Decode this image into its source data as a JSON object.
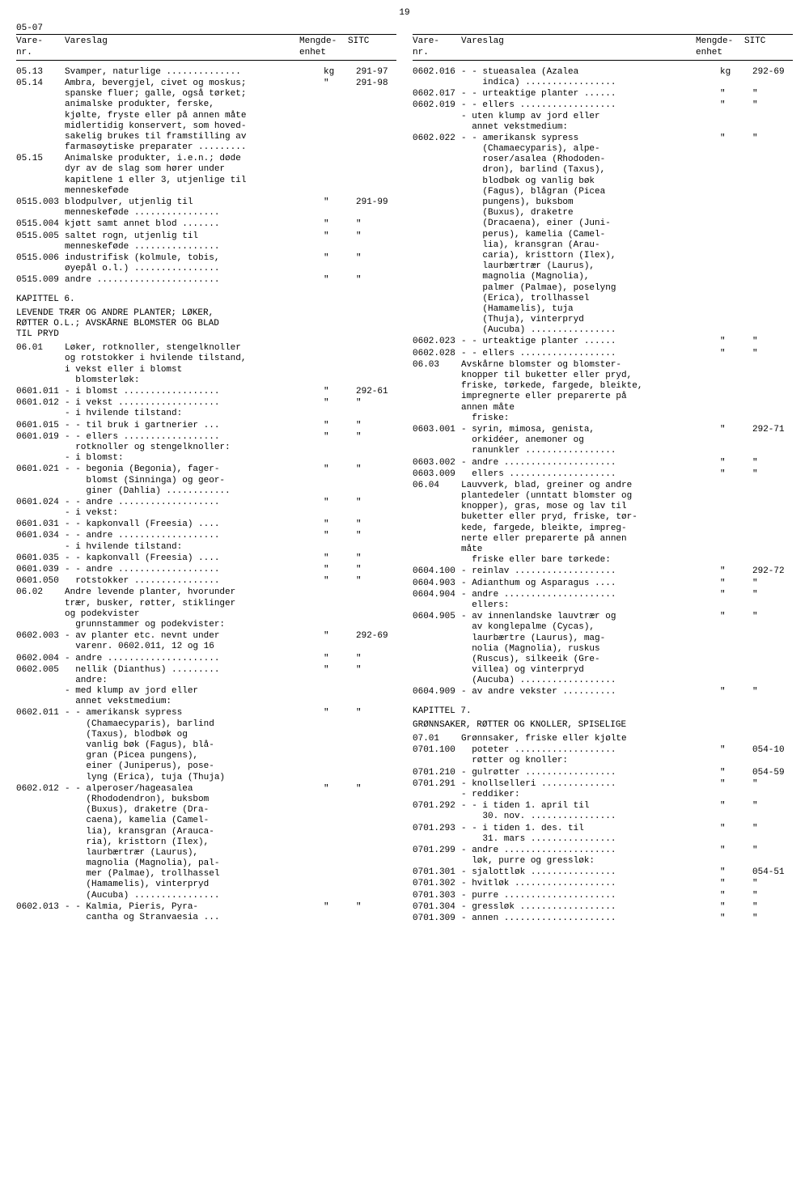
{
  "page_number": "19",
  "top_code": "05-07",
  "headers": {
    "vare_nr": "Vare-\nnr.",
    "vareslag": "Vareslag",
    "mengde_enhet": "Mengde-\nenhet",
    "sitc": "SITC"
  },
  "left": [
    {
      "nr": "05.13",
      "text": "Svamper, naturlige ..............",
      "unit": "kg",
      "sitc": "291-97"
    },
    {
      "nr": "05.14",
      "text": "Ambra, bevergjel, civet og moskus;\nspanske fluer; galle, også tørket;\nanimalske produkter, ferske,\nkjølte, fryste eller på annen måte\nmidlertidig konservert, som hoved-\nsakelig brukes til framstilling av\nfarmasøytiske preparater .........",
      "unit": "\"",
      "sitc": "291-98"
    },
    {
      "nr": "05.15",
      "text": "Animalske produkter, i.e.n.; døde\ndyr av de slag som hører under\nkapitlene 1 eller 3, utjenlige til\nmenneskeføde",
      "unit": "",
      "sitc": ""
    },
    {
      "nr": "0515.003",
      "text": "blodpulver, utjenlig til\nmenneskeføde ................",
      "unit": "\"",
      "sitc": "291-99"
    },
    {
      "nr": "0515.004",
      "text": "kjøtt samt annet blod .......",
      "unit": "\"",
      "sitc": "\""
    },
    {
      "nr": "0515.005",
      "text": "saltet rogn, utjenlig til\nmenneskeføde ................",
      "unit": "\"",
      "sitc": "\""
    },
    {
      "nr": "0515.006",
      "text": "industrifisk (kolmule, tobis,\nøyepål o.l.) ................",
      "unit": "\"",
      "sitc": "\""
    },
    {
      "nr": "0515.009",
      "text": "andre .......................",
      "unit": "\"",
      "sitc": "\""
    },
    {
      "nr": "",
      "text": "",
      "chapter": "KAPITTEL 6."
    },
    {
      "nr": "",
      "text": "",
      "title": "LEVENDE TRÆR OG ANDRE PLANTER; LØKER,\nRØTTER O.L.; AVSKÅRNE BLOMSTER OG BLAD\nTIL PRYD"
    },
    {
      "nr": "06.01",
      "text": "Løker, rotknoller, stengelknoller\nog rotstokker i hvilende tilstand,\ni vekst eller i blomst\n  blomsterløk:",
      "unit": "",
      "sitc": ""
    },
    {
      "nr": "0601.011",
      "text": "- i blomst ..................",
      "unit": "\"",
      "sitc": "292-61"
    },
    {
      "nr": "0601.012",
      "text": "- i vekst ...................\n- i hvilende tilstand:",
      "unit": "\"",
      "sitc": "\""
    },
    {
      "nr": "0601.015",
      "text": "- - til bruk i gartnerier ...",
      "unit": "\"",
      "sitc": "\""
    },
    {
      "nr": "0601.019",
      "text": "- - ellers ..................\n  rotknoller og stengelknoller:\n- i blomst:",
      "unit": "\"",
      "sitc": "\""
    },
    {
      "nr": "0601.021",
      "text": "- - begonia (Begonia), fager-\n    blomst (Sinninga) og geor-\n    giner (Dahlia) ............",
      "unit": "\"",
      "sitc": "\""
    },
    {
      "nr": "0601.024",
      "text": "- - andre ...................\n- i vekst:",
      "unit": "\"",
      "sitc": "\""
    },
    {
      "nr": "0601.031",
      "text": "- - kapkonvall (Freesia) ....",
      "unit": "\"",
      "sitc": "\""
    },
    {
      "nr": "0601.034",
      "text": "- - andre ...................\n- i hvilende tilstand:",
      "unit": "\"",
      "sitc": "\""
    },
    {
      "nr": "0601.035",
      "text": "- - kapkonvall (Freesia) ....",
      "unit": "\"",
      "sitc": "\""
    },
    {
      "nr": "0601.039",
      "text": "- - andre ...................",
      "unit": "\"",
      "sitc": "\""
    },
    {
      "nr": "0601.050",
      "text": "  rotstokker ................",
      "unit": "\"",
      "sitc": "\""
    },
    {
      "nr": "06.02",
      "text": "Andre levende planter, hvorunder\ntrær, busker, røtter, stiklinger\nog podekvister\n  grunnstammer og podekvister:",
      "unit": "",
      "sitc": ""
    },
    {
      "nr": "0602.003",
      "text": "- av planter etc. nevnt under\n  varenr. 0602.011, 12 og 16",
      "unit": "\"",
      "sitc": "292-69"
    },
    {
      "nr": "0602.004",
      "text": "- andre .....................",
      "unit": "\"",
      "sitc": "\""
    },
    {
      "nr": "0602.005",
      "text": "  nellik (Dianthus) .........\n  andre:\n- med klump av jord eller\n  annet vekstmedium:",
      "unit": "\"",
      "sitc": "\""
    },
    {
      "nr": "0602.011",
      "text": "- - amerikansk sypress\n    (Chamaecyparis), barlind\n    (Taxus), blodbøk og\n    vanlig bøk (Fagus), blå-\n    gran (Picea pungens),\n    einer (Juniperus), pose-\n    lyng (Erica), tuja (Thuja)",
      "unit": "\"",
      "sitc": "\""
    },
    {
      "nr": "0602.012",
      "text": "- - alperoser/hageasalea\n    (Rhododendron), buksbom\n    (Buxus), draketre (Dra-\n    caena), kamelia (Camel-\n    lia), kransgran (Arauca-\n    ria), kristtorn (Ilex),\n    laurbærtrær (Laurus),\n    magnolia (Magnolia), pal-\n    mer (Palmae), trollhassel\n    (Hamamelis), vinterpryd\n    (Aucuba) ................",
      "unit": "\"",
      "sitc": "\""
    },
    {
      "nr": "0602.013",
      "text": "- - Kalmia, Pieris, Pyra-\n    cantha og Stranvaesia ...",
      "unit": "\"",
      "sitc": "\""
    }
  ],
  "right": [
    {
      "nr": "0602.016",
      "text": "- - stueasalea (Azalea\n    indica) .................",
      "unit": "kg",
      "sitc": "292-69"
    },
    {
      "nr": "0602.017",
      "text": "- - urteaktige planter ......",
      "unit": "\"",
      "sitc": "\""
    },
    {
      "nr": "0602.019",
      "text": "- - ellers ..................\n- uten klump av jord eller\n  annet vekstmedium:",
      "unit": "\"",
      "sitc": "\""
    },
    {
      "nr": "0602.022",
      "text": "- - amerikansk sypress\n    (Chamaecyparis), alpe-\n    roser/asalea (Rhododen-\n    dron), barlind (Taxus),\n    blodbøk og vanlig bøk\n    (Fagus), blågran (Picea\n    pungens), buksbom\n    (Buxus), draketre\n    (Dracaena), einer (Juni-\n    perus), kamelia (Camel-\n    lia), kransgran (Arau-\n    caria), kristtorn (Ilex),\n    laurbærtrær (Laurus),\n    magnolia (Magnolia),\n    palmer (Palmae), poselyng\n    (Erica), trollhassel\n    (Hamamelis), tuja\n    (Thuja), vinterpryd\n    (Aucuba) ................",
      "unit": "\"",
      "sitc": "\""
    },
    {
      "nr": "0602.023",
      "text": "- - urteaktige planter ......",
      "unit": "\"",
      "sitc": "\""
    },
    {
      "nr": "0602.028",
      "text": "- - ellers ..................",
      "unit": "\"",
      "sitc": "\""
    },
    {
      "nr": "06.03",
      "text": "Avskårne blomster og blomster-\nknopper til buketter eller pryd,\nfriske, tørkede, fargede, bleikte,\nimpregnerte eller preparerte på\nannen måte\n  friske:",
      "unit": "",
      "sitc": ""
    },
    {
      "nr": "0603.001",
      "text": "- syrin, mimosa, genista,\n  orkidéer, anemoner og\n  ranunkler .................",
      "unit": "\"",
      "sitc": "292-71"
    },
    {
      "nr": "0603.002",
      "text": "- andre .....................",
      "unit": "\"",
      "sitc": "\""
    },
    {
      "nr": "0603.009",
      "text": "  ellers ....................",
      "unit": "\"",
      "sitc": "\""
    },
    {
      "nr": "06.04",
      "text": "Lauvverk, blad, greiner og andre\nplantedeler (unntatt blomster og\nknopper), gras, mose og lav til\nbuketter eller pryd, friske, tør-\nkede, fargede, bleikte, impreg-\nnerte eller preparerte på annen\nmåte\n  friske eller bare tørkede:",
      "unit": "",
      "sitc": ""
    },
    {
      "nr": "0604.100",
      "text": "- reinlav ...................",
      "unit": "\"",
      "sitc": "292-72"
    },
    {
      "nr": "0604.903",
      "text": "- Adianthum og Asparagus ....",
      "unit": "\"",
      "sitc": "\""
    },
    {
      "nr": "0604.904",
      "text": "- andre .....................\n  ellers:",
      "unit": "\"",
      "sitc": "\""
    },
    {
      "nr": "0604.905",
      "text": "- av innenlandske lauvtrær og\n  av konglepalme (Cycas),\n  laurbærtre (Laurus), mag-\n  nolia (Magnolia), ruskus\n  (Ruscus), silkeeik (Gre-\n  villea) og vinterpryd\n  (Aucuba) ..................",
      "unit": "\"",
      "sitc": "\""
    },
    {
      "nr": "0604.909",
      "text": "- av andre vekster ..........",
      "unit": "\"",
      "sitc": "\""
    },
    {
      "nr": "",
      "text": "",
      "chapter": "KAPITTEL 7."
    },
    {
      "nr": "",
      "text": "",
      "title": "GRØNNSAKER, RØTTER OG KNOLLER, SPISELIGE"
    },
    {
      "nr": "07.01",
      "text": "Grønnsaker, friske eller kjølte",
      "unit": "",
      "sitc": ""
    },
    {
      "nr": "0701.100",
      "text": "  poteter ...................\n  røtter og knoller:",
      "unit": "\"",
      "sitc": "054-10"
    },
    {
      "nr": "0701.210",
      "text": "- gulrøtter .................",
      "unit": "\"",
      "sitc": "054-59"
    },
    {
      "nr": "0701.291",
      "text": "- knollselleri ..............\n- reddiker:",
      "unit": "\"",
      "sitc": "\""
    },
    {
      "nr": "0701.292",
      "text": "- - i tiden 1. april til\n    30. nov. ................",
      "unit": "\"",
      "sitc": "\""
    },
    {
      "nr": "0701.293",
      "text": "- - i tiden 1. des. til\n    31. mars ................",
      "unit": "\"",
      "sitc": "\""
    },
    {
      "nr": "0701.299",
      "text": "- andre .....................\n  løk, purre og gressløk:",
      "unit": "\"",
      "sitc": "\""
    },
    {
      "nr": "0701.301",
      "text": "- sjalottløk ................",
      "unit": "\"",
      "sitc": "054-51"
    },
    {
      "nr": "0701.302",
      "text": "- hvitløk ...................",
      "unit": "\"",
      "sitc": "\""
    },
    {
      "nr": "0701.303",
      "text": "- purre .....................",
      "unit": "\"",
      "sitc": "\""
    },
    {
      "nr": "0701.304",
      "text": "- gressløk ..................",
      "unit": "\"",
      "sitc": "\""
    },
    {
      "nr": "0701.309",
      "text": "- annen .....................",
      "unit": "\"",
      "sitc": "\""
    }
  ]
}
